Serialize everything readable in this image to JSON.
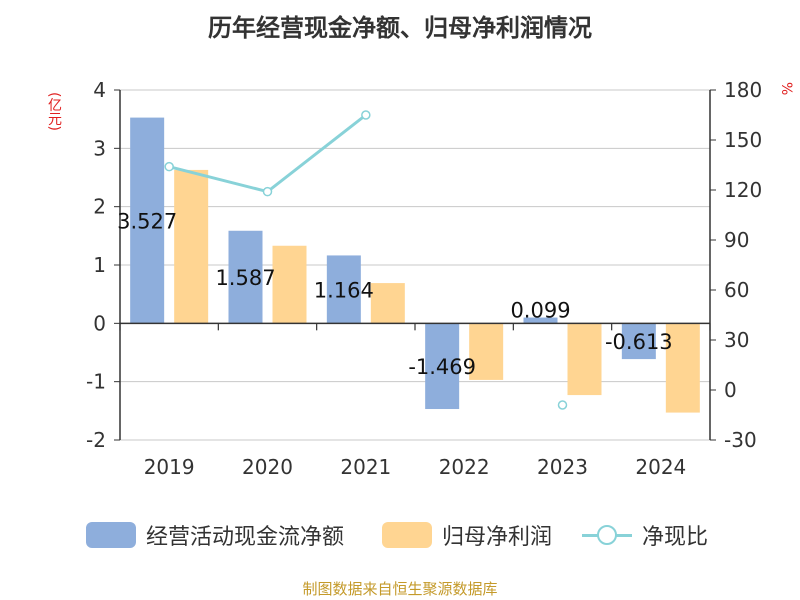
{
  "title": "历年经营现金净额、归母净利润情况",
  "left_unit": "(亿元)",
  "right_unit": "%",
  "source": "制图数据来自恒生聚源数据库",
  "colors": {
    "cash_flow": "#8eaedc",
    "net_profit": "#ffd592",
    "ratio": "#88d2d8"
  },
  "chart_data": {
    "type": "bar",
    "title": "历年经营现金净额、归母净利润情况",
    "categories": [
      "2019",
      "2020",
      "2021",
      "2022",
      "2023",
      "2024"
    ],
    "y_left": {
      "label": "(亿元)",
      "ylim": [
        -2,
        4
      ],
      "ticks": [
        4,
        3,
        2,
        1,
        0,
        -1,
        -2
      ]
    },
    "y_right": {
      "label": "%",
      "ylim": [
        -30,
        180
      ],
      "ticks": [
        180,
        150,
        120,
        90,
        60,
        30,
        0,
        -30
      ]
    },
    "grid": true,
    "legend_position": "bottom",
    "series": [
      {
        "name": "经营活动现金流净额",
        "type": "bar",
        "axis": "left",
        "values": [
          3.527,
          1.587,
          1.164,
          -1.469,
          0.099,
          -0.613
        ],
        "labels": [
          "3.527",
          "1.587",
          "1.164",
          "-1.469",
          "0.099",
          "-0.613"
        ]
      },
      {
        "name": "归母净利润",
        "type": "bar",
        "axis": "left",
        "values": [
          2.63,
          1.33,
          0.69,
          -0.97,
          -1.23,
          -1.53
        ]
      },
      {
        "name": "净现比",
        "type": "line",
        "axis": "right",
        "values": [
          134,
          119,
          165,
          null,
          -9,
          null
        ]
      }
    ]
  }
}
